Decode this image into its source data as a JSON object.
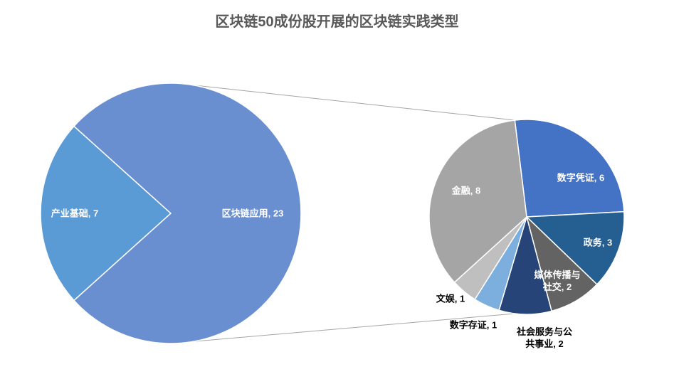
{
  "chart_data": [
    {
      "type": "pie",
      "title": "区块链50成份股开展的区块链实践类型",
      "categories": [
        "产业基础",
        "区块链应用"
      ],
      "values": [
        7,
        23
      ],
      "colors": [
        "#5b9bd5",
        "#6a8fd0"
      ]
    },
    {
      "type": "pie",
      "categories": [
        "数字凭证",
        "政务",
        "媒体传播与社交",
        "社会服务与公共事业",
        "数字存证",
        "文娱",
        "金融"
      ],
      "values": [
        6,
        3,
        2,
        2,
        1,
        1,
        8
      ],
      "colors": [
        "#4472c4",
        "#255e91",
        "#636363",
        "#264478",
        "#7cafdd",
        "#bfbfbf",
        "#a5a5a5"
      ]
    }
  ]
}
